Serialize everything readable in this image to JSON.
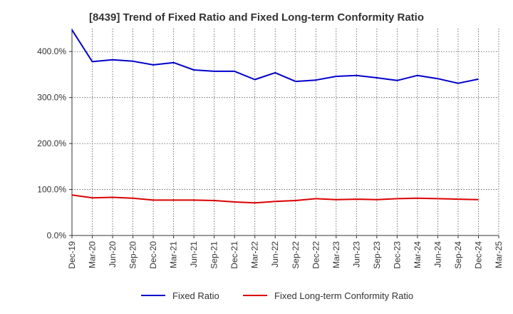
{
  "chart_data": {
    "type": "line",
    "title": "[8439]  Trend of Fixed Ratio and Fixed Long-term Conformity Ratio",
    "xlabel": "",
    "ylabel": "",
    "x": [
      "Dec-19",
      "Mar-20",
      "Jun-20",
      "Sep-20",
      "Dec-20",
      "Mar-21",
      "Jun-21",
      "Sep-21",
      "Dec-21",
      "Mar-22",
      "Jun-22",
      "Sep-22",
      "Dec-22",
      "Mar-23",
      "Jun-23",
      "Sep-23",
      "Dec-23",
      "Mar-24",
      "Jun-24",
      "Sep-24",
      "Dec-24",
      "Mar-25"
    ],
    "ylim": [
      0,
      450
    ],
    "yticks": [
      0,
      100,
      200,
      300,
      400
    ],
    "ytick_labels": [
      "0.0%",
      "100.0%",
      "200.0%",
      "300.0%",
      "400.0%"
    ],
    "grid": true,
    "legend_position": "bottom",
    "series": [
      {
        "name": "Fixed Ratio",
        "color": "#0000cc",
        "values": [
          447,
          378,
          382,
          379,
          371,
          376,
          360,
          357,
          357,
          339,
          354,
          335,
          338,
          346,
          348,
          343,
          337,
          348,
          341,
          331,
          340,
          null
        ]
      },
      {
        "name": "Fixed Long-term Conformity Ratio",
        "color": "#dd0000",
        "values": [
          88,
          82,
          83,
          81,
          77,
          77,
          77,
          76,
          73,
          71,
          74,
          76,
          80,
          78,
          79,
          78,
          80,
          81,
          80,
          79,
          78,
          null
        ]
      }
    ]
  }
}
